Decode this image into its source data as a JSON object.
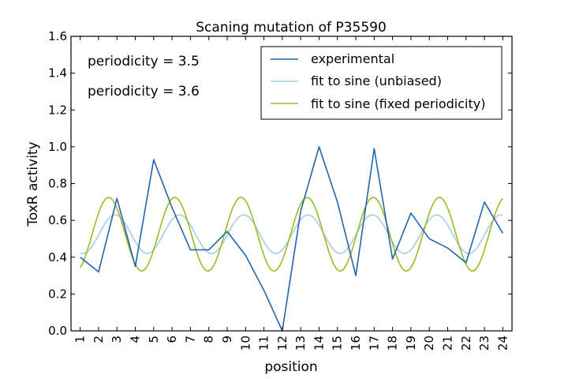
{
  "chart_data": {
    "type": "line",
    "title": "Scaning mutation of P35590",
    "xlabel": "position",
    "ylabel": "ToxR activity",
    "xlim": [
      0.5,
      24.5
    ],
    "ylim": [
      0.0,
      1.6
    ],
    "x_ticks": [
      "1",
      "2",
      "3",
      "4",
      "5",
      "6",
      "7",
      "8",
      "9",
      "10",
      "11",
      "12",
      "13",
      "14",
      "15",
      "16",
      "17",
      "18",
      "19",
      "20",
      "21",
      "22",
      "23",
      "24"
    ],
    "y_ticks": [
      "0.0",
      "0.2",
      "0.4",
      "0.6",
      "0.8",
      "1.0",
      "1.2",
      "1.4",
      "1.6"
    ],
    "grid": false,
    "legend_position": "top-right",
    "annotations": [
      {
        "text": "periodicity = 3.5",
        "color": "#a6cee3"
      },
      {
        "text": "periodicity = 3.6",
        "color": "#a1b81f"
      }
    ],
    "series": [
      {
        "name": "experimental",
        "color": "#2166ac",
        "x": [
          1,
          2,
          3,
          4,
          5,
          6,
          7,
          8,
          9,
          10,
          11,
          12,
          13,
          14,
          15,
          16,
          17,
          18,
          19,
          20,
          21,
          22,
          23,
          24
        ],
        "values": [
          0.4,
          0.32,
          0.72,
          0.35,
          0.93,
          0.67,
          0.44,
          0.44,
          0.54,
          0.41,
          0.22,
          0.0,
          0.65,
          1.0,
          0.7,
          0.3,
          0.99,
          0.39,
          0.64,
          0.5,
          0.45,
          0.37,
          0.7,
          0.53
        ]
      },
      {
        "name": "fit to sine (unbiased)",
        "color": "#a6cee3",
        "sine": {
          "offset": 0.525,
          "amplitude": 0.105,
          "period": 3.5,
          "peak_x": 2.9
        },
        "x_range": [
          1,
          24
        ]
      },
      {
        "name": "fit to sine (fixed periodicity)",
        "color": "#a1b81f",
        "sine": {
          "offset": 0.525,
          "amplitude": 0.2,
          "period": 3.6,
          "peak_x": 2.55
        },
        "x_range": [
          1,
          24
        ]
      }
    ]
  }
}
